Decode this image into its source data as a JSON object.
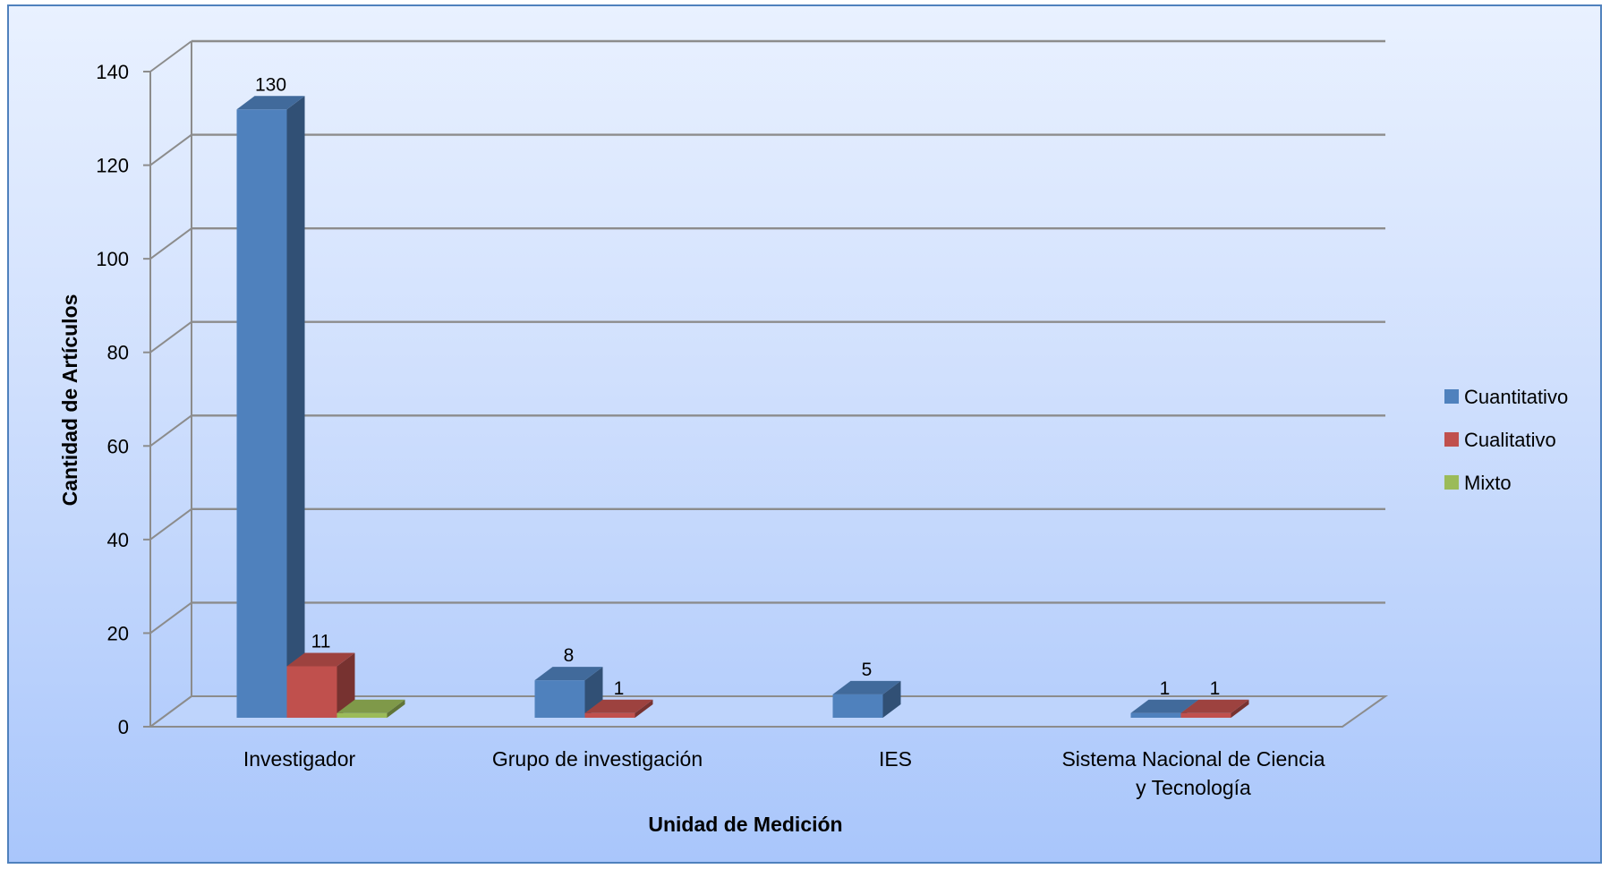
{
  "chart_data": {
    "type": "bar",
    "style": "3d-clustered-column",
    "title": "",
    "xlabel": "Unidad de Medición",
    "ylabel": "Cantidad de Artículos",
    "ylim": [
      0,
      140
    ],
    "yticks": [
      "0",
      "20",
      "40",
      "60",
      "80",
      "100",
      "120",
      "140"
    ],
    "grid": true,
    "legend_position": "right",
    "categories": [
      [
        "Investigador"
      ],
      [
        "Grupo de investigación"
      ],
      [
        "IES"
      ],
      [
        "Sistema Nacional de Ciencia",
        "y Tecnología"
      ]
    ],
    "series": [
      {
        "name": "Cuantitativo",
        "color": "#4f81bd",
        "values": [
          130,
          8,
          5,
          1
        ],
        "labels": [
          "130",
          "8",
          "5",
          "1"
        ]
      },
      {
        "name": "Cualitativo",
        "color": "#c0504d",
        "values": [
          11,
          1,
          null,
          1
        ],
        "labels": [
          "11",
          "1",
          "",
          "1"
        ]
      },
      {
        "name": "Mixto",
        "color": "#9bbb59",
        "values": [
          1,
          null,
          null,
          null
        ],
        "labels": [
          "",
          "",
          "",
          ""
        ]
      }
    ]
  }
}
